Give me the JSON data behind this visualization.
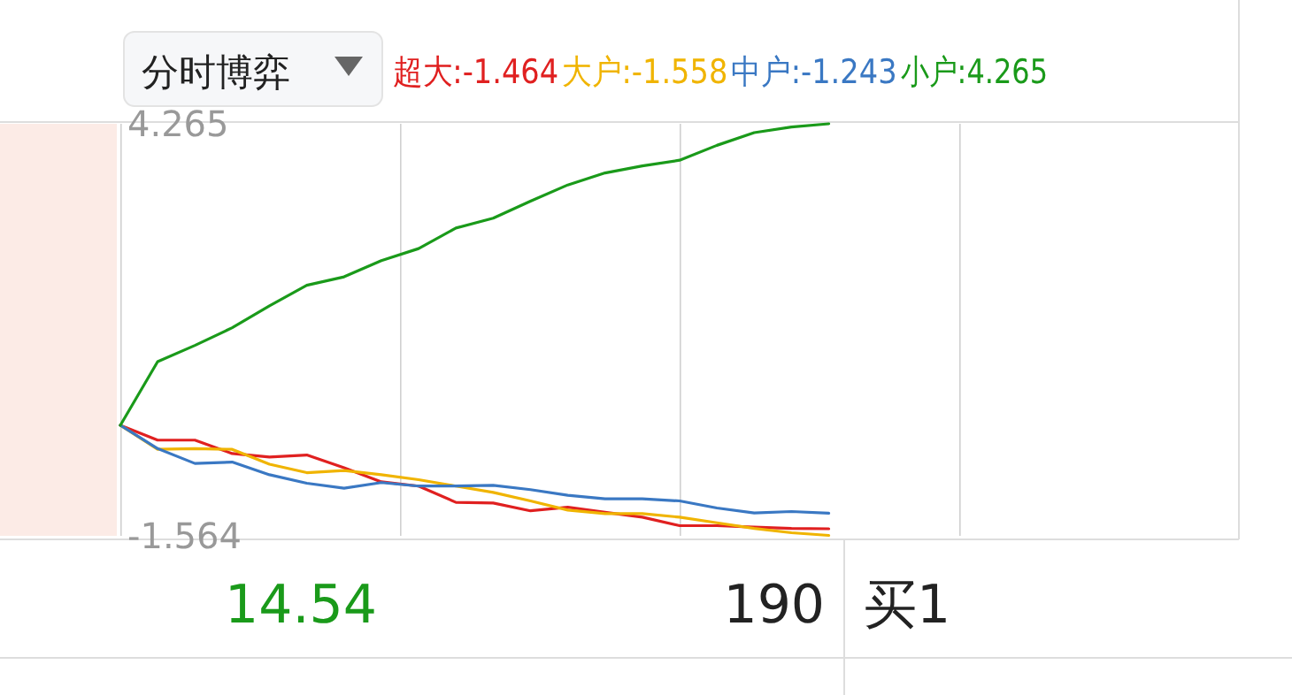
{
  "chart_data": {
    "type": "line",
    "title": "分时博弈",
    "tick_labels": "y",
    "ylim": [
      -1.564,
      4.265
    ],
    "categories": [
      null,
      null,
      null,
      null,
      null,
      null,
      null,
      null,
      null,
      null,
      null,
      null,
      null,
      null,
      null,
      null,
      null,
      null,
      null,
      null,
      null,
      null,
      null,
      null,
      null,
      null,
      null,
      null,
      null,
      null,
      null
    ],
    "yticks": [
      4.265,
      -1.564
    ],
    "series": [
      {
        "name": "超大:-1.464",
        "color": "#e02020",
        "values": [
          0,
          -0.21,
          -0.21,
          -0.4,
          -0.45,
          -0.42,
          -0.6,
          -0.8,
          -0.86,
          -1.09,
          -1.1,
          -1.21,
          -1.16,
          -1.23,
          -1.3,
          -1.42,
          -1.42,
          -1.44,
          -1.46,
          -1.464,
          null,
          null,
          null,
          null,
          null,
          null,
          null,
          null,
          null,
          null,
          null
        ]
      },
      {
        "name": "大户:-1.558",
        "color": "#f0b400",
        "values": [
          0,
          -0.34,
          -0.33,
          -0.34,
          -0.55,
          -0.67,
          -0.64,
          -0.7,
          -0.77,
          -0.86,
          -0.95,
          -1.07,
          -1.2,
          -1.25,
          -1.25,
          -1.3,
          -1.38,
          -1.46,
          -1.52,
          -1.558,
          null,
          null,
          null,
          null,
          null,
          null,
          null,
          null,
          null,
          null,
          null
        ]
      },
      {
        "name": "中户:-1.243",
        "color": "#3a78c3",
        "values": [
          0,
          -0.33,
          -0.54,
          -0.52,
          -0.7,
          -0.82,
          -0.89,
          -0.81,
          -0.86,
          -0.86,
          -0.85,
          -0.91,
          -0.99,
          -1.04,
          -1.04,
          -1.07,
          -1.17,
          -1.24,
          -1.22,
          -1.243,
          null,
          null,
          null,
          null,
          null,
          null,
          null,
          null,
          null,
          null,
          null
        ]
      },
      {
        "name": "小户:4.265",
        "color": "#1a9a1a",
        "values": [
          0,
          0.9,
          1.13,
          1.38,
          1.69,
          1.98,
          2.1,
          2.33,
          2.5,
          2.79,
          2.93,
          3.17,
          3.4,
          3.57,
          3.67,
          3.75,
          3.96,
          4.14,
          4.22,
          4.265,
          null,
          null,
          null,
          null,
          null,
          null,
          null,
          null,
          null,
          null,
          null
        ]
      }
    ],
    "annotations": [
      "14.54",
      "190",
      "买1"
    ]
  }
}
